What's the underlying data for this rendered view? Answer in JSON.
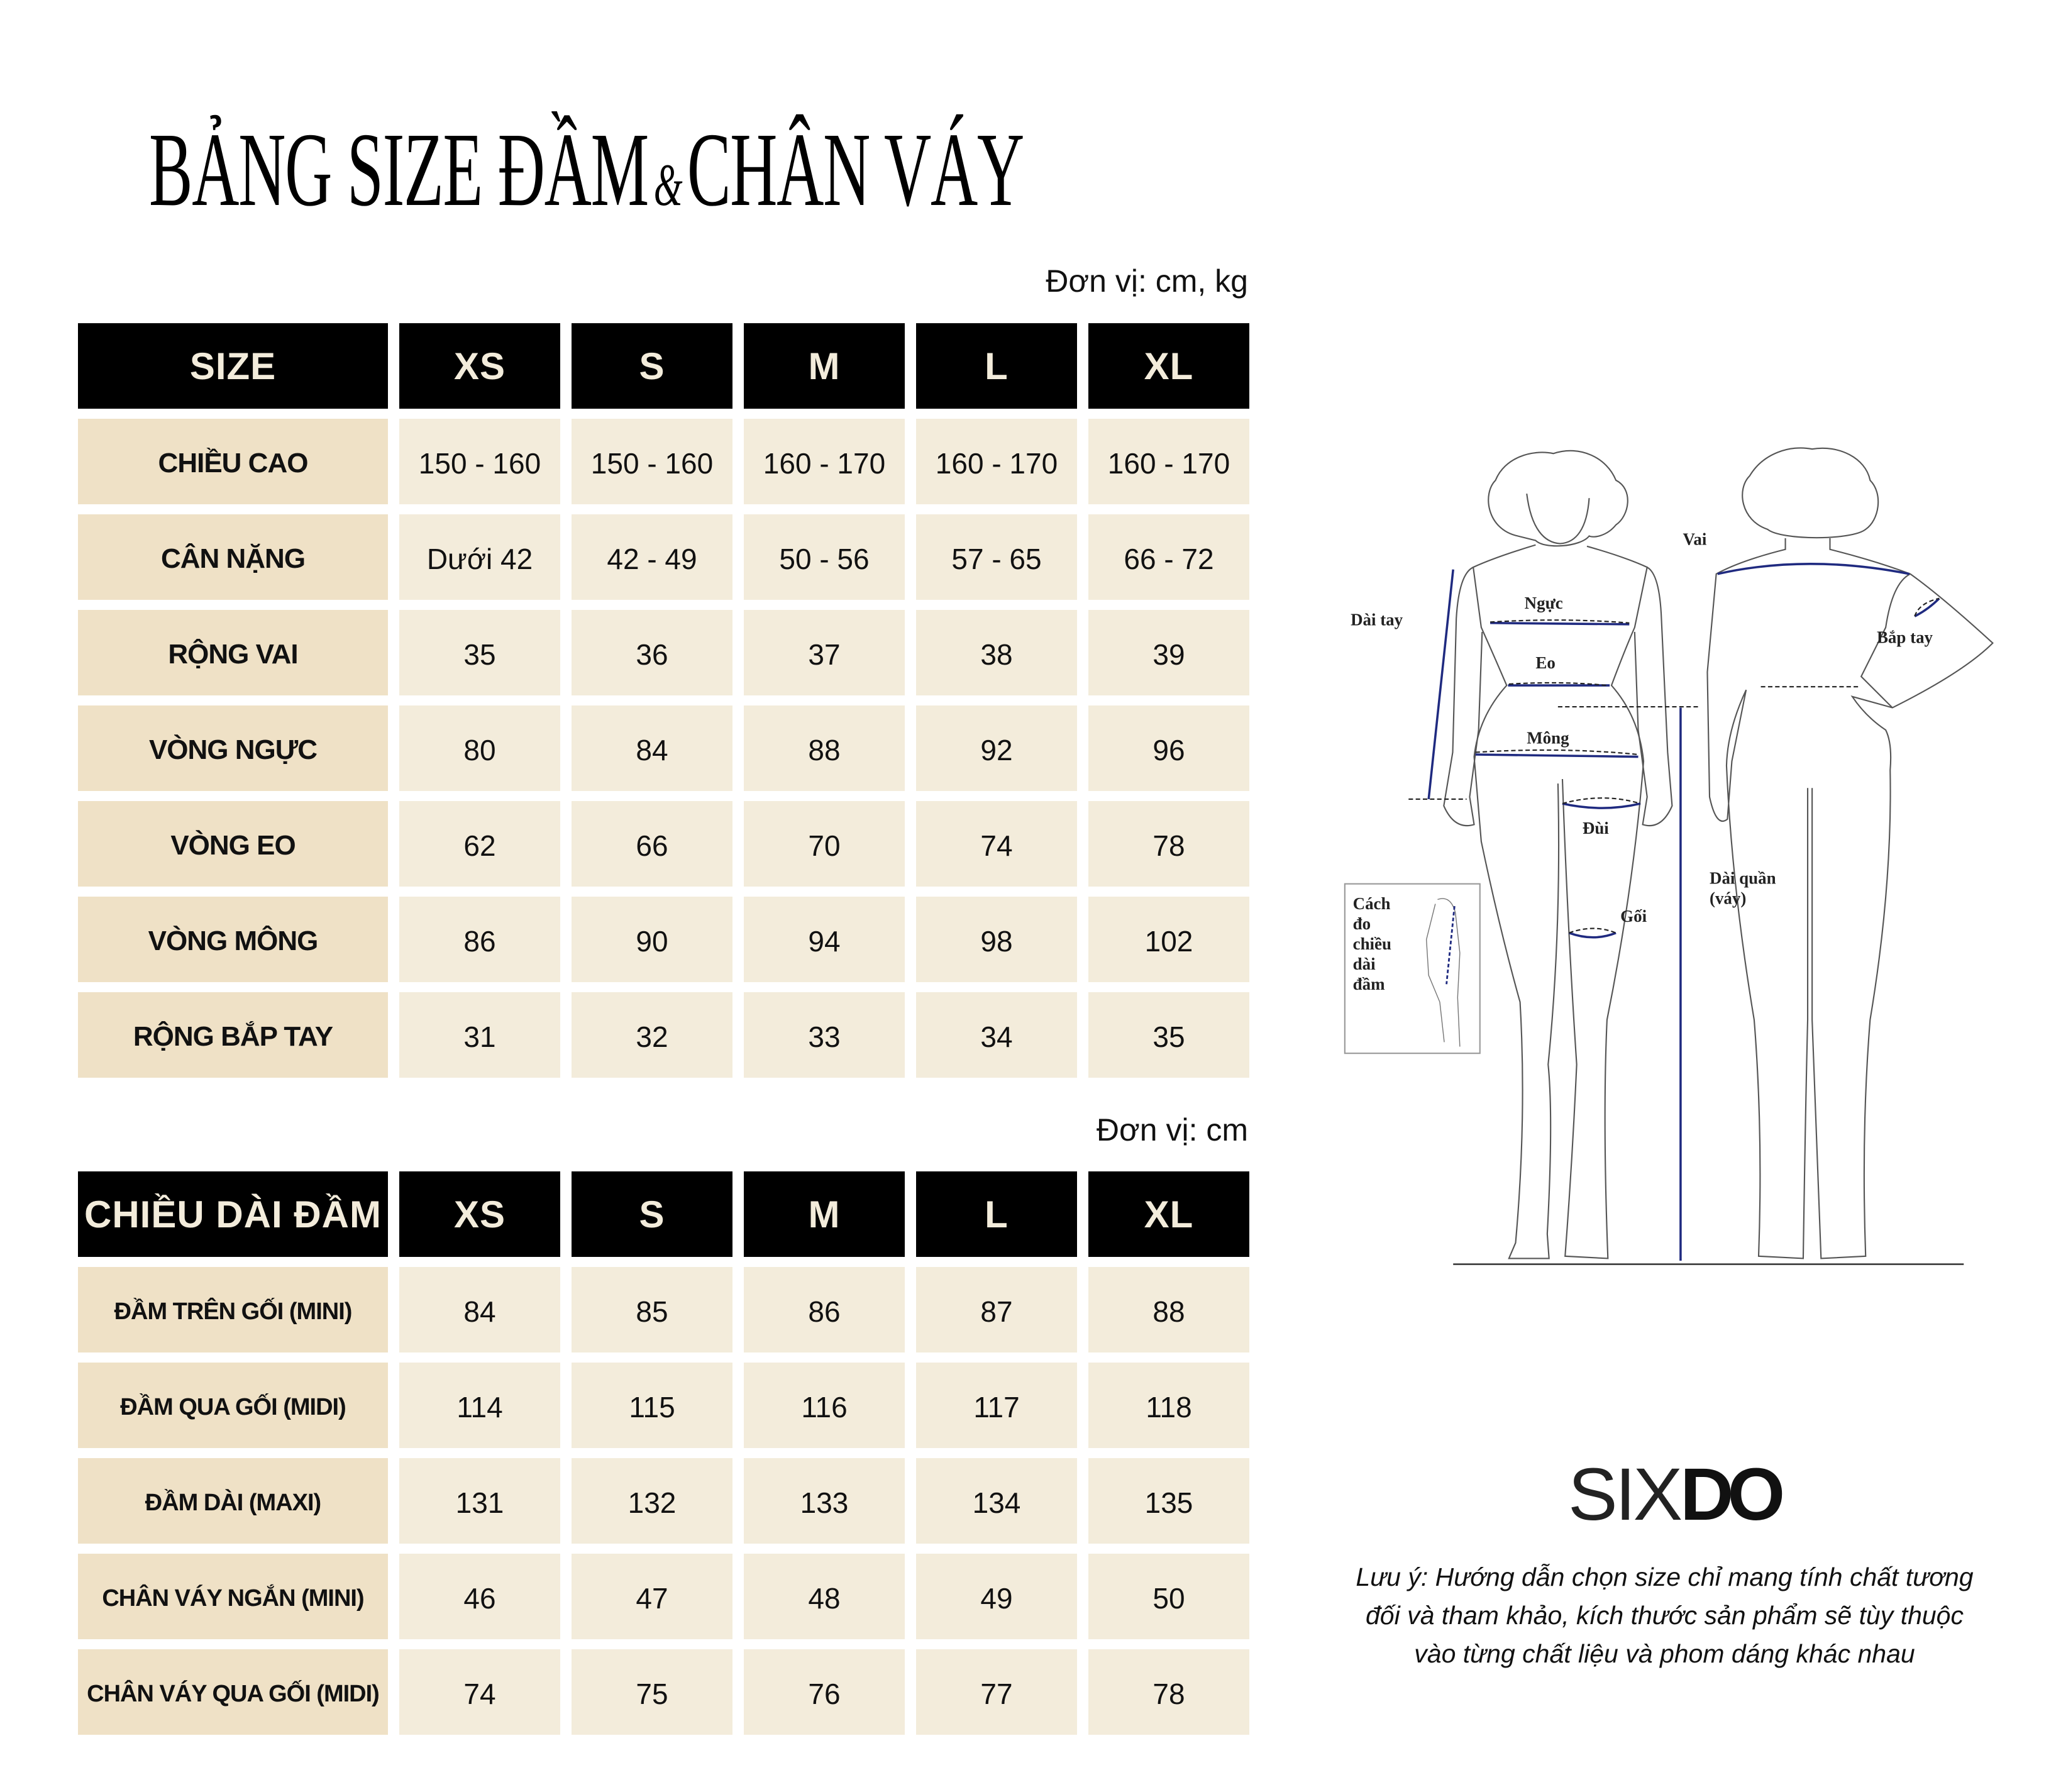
{
  "title": {
    "part1": "BẢNG SIZE ĐẦM",
    "amp": "&",
    "part2": "CHÂN VÁY"
  },
  "table1": {
    "unit": "Đơn vị: cm, kg",
    "header": [
      "SIZE",
      "XS",
      "S",
      "M",
      "L",
      "XL"
    ],
    "rows": [
      {
        "label": "CHIỀU CAO",
        "values": [
          "150 - 160",
          "150 - 160",
          "160 - 170",
          "160 - 170",
          "160 - 170"
        ]
      },
      {
        "label": "CÂN NẶNG",
        "values": [
          "Dưới 42",
          "42 - 49",
          "50 - 56",
          "57 - 65",
          "66 - 72"
        ]
      },
      {
        "label": "RỘNG VAI",
        "values": [
          "35",
          "36",
          "37",
          "38",
          "39"
        ]
      },
      {
        "label": "VÒNG NGỰC",
        "values": [
          "80",
          "84",
          "88",
          "92",
          "96"
        ]
      },
      {
        "label": "VÒNG EO",
        "values": [
          "62",
          "66",
          "70",
          "74",
          "78"
        ]
      },
      {
        "label": "VÒNG MÔNG",
        "values": [
          "86",
          "90",
          "94",
          "98",
          "102"
        ]
      },
      {
        "label": "RỘNG BẮP TAY",
        "values": [
          "31",
          "32",
          "33",
          "34",
          "35"
        ]
      }
    ]
  },
  "table2": {
    "unit": "Đơn vị: cm",
    "header": [
      "CHIỀU DÀI ĐẦM",
      "XS",
      "S",
      "M",
      "L",
      "XL"
    ],
    "rows": [
      {
        "label": "ĐẦM TRÊN GỐI (MINI)",
        "values": [
          "84",
          "85",
          "86",
          "87",
          "88"
        ]
      },
      {
        "label": "ĐẦM QUA GỐI (MIDI)",
        "values": [
          "114",
          "115",
          "116",
          "117",
          "118"
        ]
      },
      {
        "label": "ĐẦM DÀI (MAXI)",
        "values": [
          "131",
          "132",
          "133",
          "134",
          "135"
        ]
      },
      {
        "label": "CHÂN VÁY NGẮN (MINI)",
        "values": [
          "46",
          "47",
          "48",
          "49",
          "50"
        ]
      },
      {
        "label": "CHÂN VÁY QUA GỐI (MIDI)",
        "values": [
          "74",
          "75",
          "76",
          "77",
          "78"
        ]
      }
    ]
  },
  "diagram": {
    "labels": {
      "vai": "Vai",
      "nguc": "Ngực",
      "dai_tay": "Dài tay",
      "bap_tay": "Bắp tay",
      "eo": "Eo",
      "mong": "Mông",
      "dui": "Đùi",
      "dai_quan": "Dài quần",
      "vay": "(váy)",
      "goi": "Gối"
    },
    "inset_lines": [
      "Cách",
      "đo",
      "chiều",
      "dài",
      "đầm"
    ],
    "measure_color": "#1f2a80"
  },
  "logo": {
    "six": "SIX",
    "do": "DO"
  },
  "note": [
    "Lưu ý: Hướng dẫn chọn size chỉ mang tính chất tương",
    "đối và tham khảo, kích thước sản phẩm sẽ tùy thuộc",
    "vào từng chất liệu và phom dáng khác nhau"
  ],
  "colors": {
    "header_bg": "#000000",
    "header_text": "#f3ecdb",
    "label_bg": "#efe1c6",
    "value_bg": "#f3ecdb"
  }
}
